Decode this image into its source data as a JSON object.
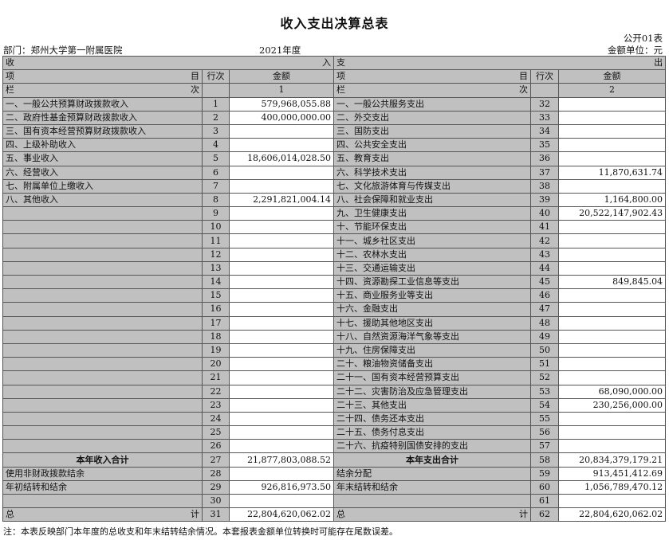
{
  "title": "收入支出决算总表",
  "form_no": "公开01表",
  "department": "部门：郑州大学第一附属医院",
  "year": "2021年度",
  "unit": "金额单位：元",
  "header": {
    "income_left": "收",
    "income_right": "入",
    "expense_left": "支",
    "expense_right": "出",
    "item_left": "项",
    "item_right": "目",
    "row_no": "行次",
    "amount": "金额",
    "col_left": "栏",
    "col_right": "次",
    "col1": "1",
    "col2": "2"
  },
  "income": [
    {
      "label": "一、一般公共预算财政拨款收入",
      "row": "1",
      "amount": "579,968,055.88"
    },
    {
      "label": "二、政府性基金预算财政拨款收入",
      "row": "2",
      "amount": "400,000,000.00"
    },
    {
      "label": "三、国有资本经营预算财政拨款收入",
      "row": "3",
      "amount": ""
    },
    {
      "label": "四、上级补助收入",
      "row": "4",
      "amount": ""
    },
    {
      "label": "五、事业收入",
      "row": "5",
      "amount": "18,606,014,028.50"
    },
    {
      "label": "六、经营收入",
      "row": "6",
      "amount": ""
    },
    {
      "label": "七、附属单位上缴收入",
      "row": "7",
      "amount": ""
    },
    {
      "label": "八、其他收入",
      "row": "8",
      "amount": "2,291,821,004.14"
    },
    {
      "label": "",
      "row": "9",
      "amount": ""
    },
    {
      "label": "",
      "row": "10",
      "amount": ""
    },
    {
      "label": "",
      "row": "11",
      "amount": ""
    },
    {
      "label": "",
      "row": "12",
      "amount": ""
    },
    {
      "label": "",
      "row": "13",
      "amount": ""
    },
    {
      "label": "",
      "row": "14",
      "amount": ""
    },
    {
      "label": "",
      "row": "15",
      "amount": ""
    },
    {
      "label": "",
      "row": "16",
      "amount": ""
    },
    {
      "label": "",
      "row": "17",
      "amount": ""
    },
    {
      "label": "",
      "row": "18",
      "amount": ""
    },
    {
      "label": "",
      "row": "19",
      "amount": ""
    },
    {
      "label": "",
      "row": "20",
      "amount": ""
    },
    {
      "label": "",
      "row": "21",
      "amount": ""
    },
    {
      "label": "",
      "row": "22",
      "amount": ""
    },
    {
      "label": "",
      "row": "23",
      "amount": ""
    },
    {
      "label": "",
      "row": "24",
      "amount": ""
    },
    {
      "label": "",
      "row": "25",
      "amount": ""
    },
    {
      "label": "",
      "row": "26",
      "amount": ""
    },
    {
      "label": "本年收入合计",
      "row": "27",
      "amount": "21,877,803,088.52",
      "bold": true
    },
    {
      "label": "使用非财政拨款结余",
      "row": "28",
      "amount": ""
    },
    {
      "label": "年初结转和结余",
      "row": "29",
      "amount": "926,816,973.50"
    },
    {
      "label": "",
      "row": "30",
      "amount": ""
    },
    {
      "label": "总",
      "label_right": "计",
      "row": "31",
      "amount": "22,804,620,062.02"
    }
  ],
  "expense": [
    {
      "label": "一、一般公共服务支出",
      "row": "32",
      "amount": ""
    },
    {
      "label": "二、外交支出",
      "row": "33",
      "amount": ""
    },
    {
      "label": "三、国防支出",
      "row": "34",
      "amount": ""
    },
    {
      "label": "四、公共安全支出",
      "row": "35",
      "amount": ""
    },
    {
      "label": "五、教育支出",
      "row": "36",
      "amount": ""
    },
    {
      "label": "六、科学技术支出",
      "row": "37",
      "amount": "11,870,631.74"
    },
    {
      "label": "七、文化旅游体育与传媒支出",
      "row": "38",
      "amount": ""
    },
    {
      "label": "八、社会保障和就业支出",
      "row": "39",
      "amount": "1,164,800.00"
    },
    {
      "label": "九、卫生健康支出",
      "row": "40",
      "amount": "20,522,147,902.43"
    },
    {
      "label": "十、节能环保支出",
      "row": "41",
      "amount": ""
    },
    {
      "label": "十一、城乡社区支出",
      "row": "42",
      "amount": ""
    },
    {
      "label": "十二、农林水支出",
      "row": "43",
      "amount": ""
    },
    {
      "label": "十三、交通运输支出",
      "row": "44",
      "amount": ""
    },
    {
      "label": "十四、资源勘探工业信息等支出",
      "row": "45",
      "amount": "849,845.04"
    },
    {
      "label": "十五、商业服务业等支出",
      "row": "46",
      "amount": ""
    },
    {
      "label": "十六、金融支出",
      "row": "47",
      "amount": ""
    },
    {
      "label": "十七、援助其他地区支出",
      "row": "48",
      "amount": ""
    },
    {
      "label": "十八、自然资源海洋气象等支出",
      "row": "49",
      "amount": ""
    },
    {
      "label": "十九、住房保障支出",
      "row": "50",
      "amount": ""
    },
    {
      "label": "二十、粮油物资储备支出",
      "row": "51",
      "amount": ""
    },
    {
      "label": "二十一、国有资本经营预算支出",
      "row": "52",
      "amount": ""
    },
    {
      "label": "二十二、灾害防治及应急管理支出",
      "row": "53",
      "amount": "68,090,000.00"
    },
    {
      "label": "二十三、其他支出",
      "row": "54",
      "amount": "230,256,000.00"
    },
    {
      "label": "二十四、债务还本支出",
      "row": "55",
      "amount": ""
    },
    {
      "label": "二十五、债务付息支出",
      "row": "56",
      "amount": ""
    },
    {
      "label": "二十六、抗疫特别国债安排的支出",
      "row": "57",
      "amount": ""
    },
    {
      "label": "本年支出合计",
      "row": "58",
      "amount": "20,834,379,179.21",
      "bold": true
    },
    {
      "label": "结余分配",
      "row": "59",
      "amount": "913,451,412.69"
    },
    {
      "label": "年末结转和结余",
      "row": "60",
      "amount": "1,056,789,470.12"
    },
    {
      "label": "",
      "row": "61",
      "amount": ""
    },
    {
      "label": "总",
      "label_right": "计",
      "row": "62",
      "amount": "22,804,620,062.02"
    }
  ],
  "note": "注：本表反映部门本年度的总收支和年末结转结余情况。本套报表金额单位转换时可能存在尾数误差。"
}
